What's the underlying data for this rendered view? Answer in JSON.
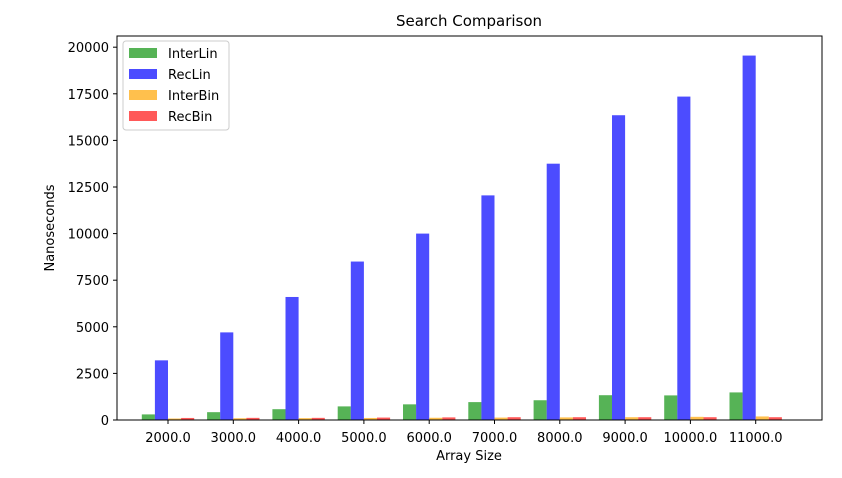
{
  "chart_data": {
    "type": "bar",
    "title": "Search Comparison",
    "xlabel": "Array Size",
    "ylabel": "Nanoseconds",
    "categories": [
      "2000.0",
      "3000.0",
      "4000.0",
      "5000.0",
      "6000.0",
      "7000.0",
      "8000.0",
      "9000.0",
      "10000.0",
      "11000.0"
    ],
    "yticks": [
      0,
      2500,
      5000,
      7500,
      10000,
      12500,
      15000,
      17500,
      20000
    ],
    "ylim": [
      0,
      20600
    ],
    "grid": false,
    "legend_position": "top-left",
    "series": [
      {
        "name": "InterLin",
        "color": "#2ca02c",
        "values": [
          300,
          420,
          580,
          730,
          840,
          960,
          1060,
          1330,
          1320,
          1480
        ]
      },
      {
        "name": "RecLin",
        "color": "#1f1fff",
        "values": [
          3200,
          4700,
          6600,
          8500,
          10000,
          12050,
          13750,
          16350,
          17350,
          19550
        ]
      },
      {
        "name": "InterBin",
        "color": "#ffb020",
        "values": [
          80,
          95,
          100,
          110,
          120,
          130,
          140,
          150,
          170,
          190
        ]
      },
      {
        "name": "RecBin",
        "color": "#ff3030",
        "values": [
          110,
          115,
          115,
          130,
          140,
          150,
          150,
          150,
          150,
          150
        ]
      }
    ]
  }
}
